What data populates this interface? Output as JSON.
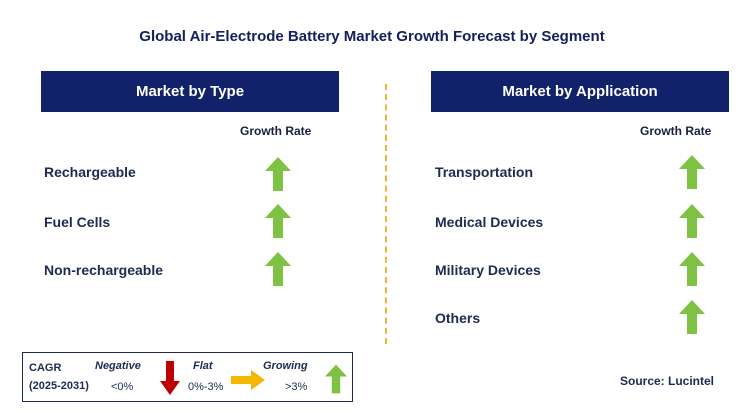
{
  "title": "Global Air-Electrode Battery Market Growth Forecast by Segment",
  "left_panel": {
    "header": "Market by Type",
    "column_label": "Growth Rate",
    "items": [
      {
        "label": "Rechargeable",
        "trend": "growing"
      },
      {
        "label": "Fuel Cells",
        "trend": "growing"
      },
      {
        "label": "Non-rechargeable",
        "trend": "growing"
      }
    ]
  },
  "right_panel": {
    "header": "Market by Application",
    "column_label": "Growth Rate",
    "items": [
      {
        "label": "Transportation",
        "trend": "growing"
      },
      {
        "label": "Medical Devices",
        "trend": "growing"
      },
      {
        "label": "Military Devices",
        "trend": "growing"
      },
      {
        "label": "Others",
        "trend": "growing"
      }
    ]
  },
  "legend": {
    "cagr_label": "CAGR",
    "period": "(2025-2031)",
    "negative_label": "Negative",
    "negative_range": "<0%",
    "flat_label": "Flat",
    "flat_range": "0%-3%",
    "growing_label": "Growing",
    "growing_range": ">3%"
  },
  "source": "Source: Lucintel",
  "colors": {
    "header_bg": "#12226a",
    "growing_arrow": "#7dc242",
    "negative_arrow": "#c00000",
    "flat_arrow": "#f5b800",
    "divider": "#f2b233"
  }
}
